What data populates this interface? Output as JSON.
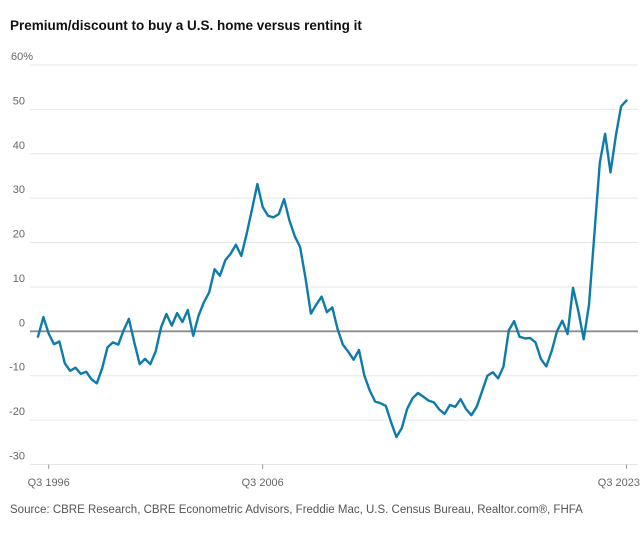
{
  "title": "Premium/discount to buy a U.S. home versus renting it",
  "source": "Source: CBRE Research, CBRE Econometric Advisors, Freddie Mac, U.S. Census Bureau, Realtor.com®, FHFA",
  "colors": {
    "line": "#0f7bab",
    "grid": "#e6e6e6",
    "zero_line": "#8c8c8c",
    "axis_text": "#666666",
    "tick": "#999999",
    "title_text": "#111111",
    "source_text": "#555555",
    "background": "#ffffff"
  },
  "chart_data": {
    "type": "line",
    "title": "Premium/discount to buy a U.S. home versus renting it",
    "unit": "%",
    "frequency": "quarterly",
    "x_start": "Q1 1996",
    "x_end": "Q3 2023",
    "ylim": [
      -30,
      60
    ],
    "y_tick_step": 10,
    "y_top_label": "60%",
    "grid": true,
    "legend_position": "none",
    "x_ticks": [
      {
        "index": 2,
        "label": "Q3 1996"
      },
      {
        "index": 42,
        "label": "Q3 2006"
      },
      {
        "index": 110,
        "label": "Q3 2023"
      }
    ],
    "values": [
      -1.2,
      3.2,
      -0.5,
      -2.9,
      -2.3,
      -7.2,
      -8.9,
      -8.2,
      -9.6,
      -9.1,
      -10.8,
      -11.7,
      -8.3,
      -3.6,
      -2.5,
      -3.0,
      0.2,
      2.8,
      -2.5,
      -7.4,
      -6.2,
      -7.4,
      -4.5,
      0.9,
      3.9,
      1.3,
      4.1,
      2.1,
      4.8,
      -1.0,
      3.5,
      6.5,
      8.8,
      14.0,
      12.5,
      16.0,
      17.5,
      19.5,
      17.0,
      22.0,
      27.5,
      33.2,
      28.0,
      26.0,
      25.7,
      26.4,
      29.8,
      25.0,
      21.4,
      19.0,
      12.0,
      4.0,
      6.0,
      7.8,
      4.3,
      5.4,
      0.5,
      -3.0,
      -4.6,
      -6.4,
      -4.2,
      -10.0,
      -13.3,
      -15.8,
      -16.2,
      -16.8,
      -20.5,
      -23.8,
      -21.8,
      -17.5,
      -15.1,
      -13.9,
      -14.7,
      -15.6,
      -16.0,
      -17.6,
      -18.6,
      -16.6,
      -17.0,
      -15.3,
      -17.5,
      -18.9,
      -17.0,
      -13.5,
      -10.0,
      -9.2,
      -10.6,
      -8.0,
      0.2,
      2.3,
      -1.2,
      -1.6,
      -1.5,
      -2.5,
      -6.2,
      -7.9,
      -4.5,
      0.0,
      2.4,
      -0.6,
      9.8,
      4.5,
      -1.8,
      6.0,
      22.0,
      38.0,
      44.5,
      35.8,
      44.0,
      50.7,
      52.0
    ]
  }
}
